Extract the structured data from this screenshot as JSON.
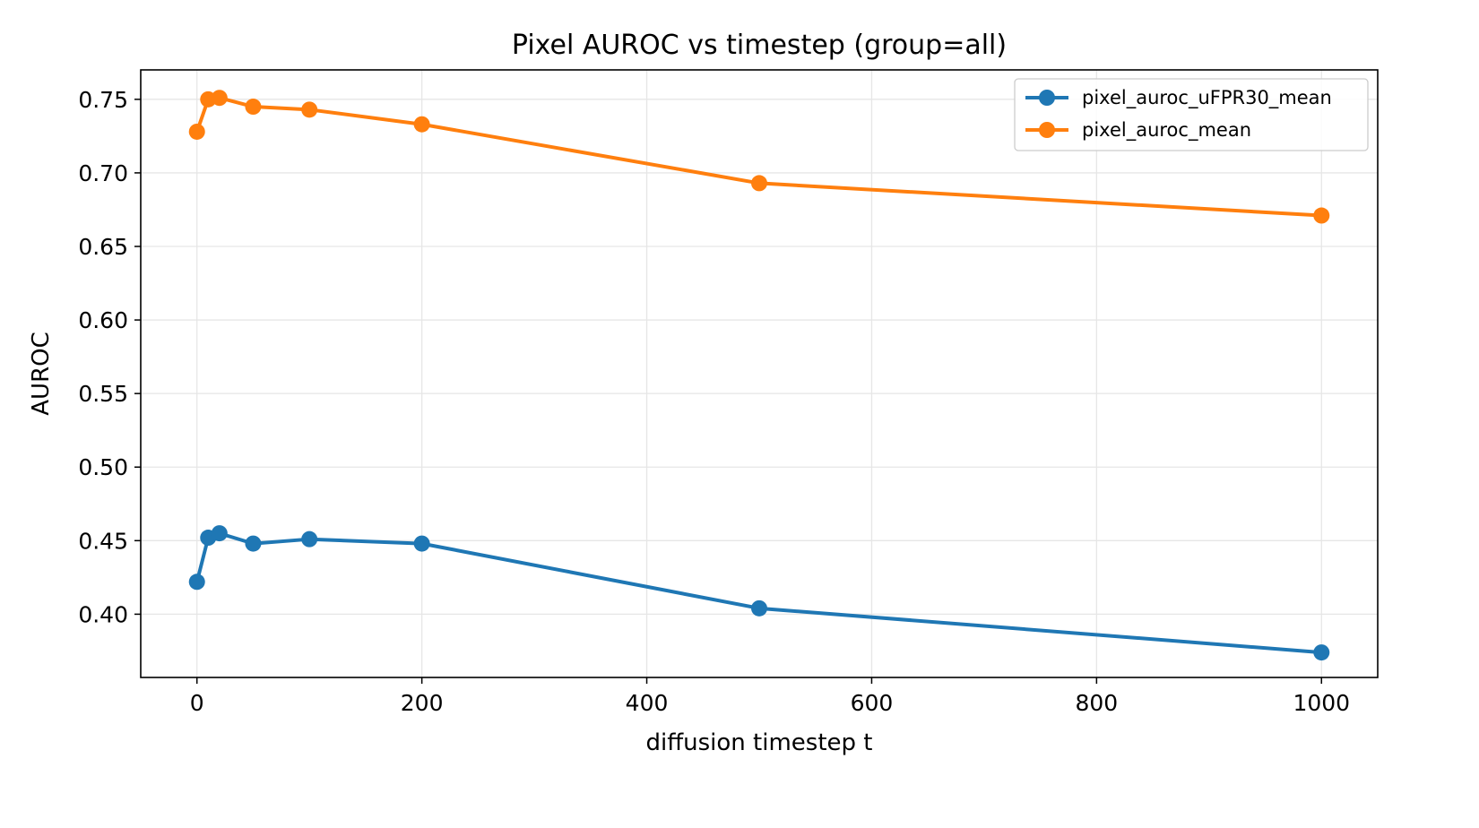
{
  "chart_data": {
    "type": "line",
    "title": "Pixel AUROC vs timestep  (group=all)",
    "xlabel": "diffusion timestep t",
    "ylabel": "AUROC",
    "xlim": [
      -50,
      1050
    ],
    "ylim": [
      0.357,
      0.77
    ],
    "xticks": [
      0,
      200,
      400,
      600,
      800,
      1000
    ],
    "xtick_labels": [
      "0",
      "200",
      "400",
      "600",
      "800",
      "1000"
    ],
    "yticks": [
      0.4,
      0.45,
      0.5,
      0.55,
      0.6,
      0.65,
      0.7,
      0.75
    ],
    "ytick_labels": [
      "0.40",
      "0.45",
      "0.50",
      "0.55",
      "0.60",
      "0.65",
      "0.70",
      "0.75"
    ],
    "grid": true,
    "legend_position": "top-right",
    "x": [
      0,
      10,
      20,
      50,
      100,
      200,
      500,
      1000
    ],
    "series": [
      {
        "name": "pixel_auroc_uFPR30_mean",
        "color": "#1f77b4",
        "values": [
          0.422,
          0.452,
          0.455,
          0.448,
          0.451,
          0.448,
          0.404,
          0.374
        ]
      },
      {
        "name": "pixel_auroc_mean",
        "color": "#ff7f0e",
        "values": [
          0.728,
          0.75,
          0.751,
          0.745,
          0.743,
          0.733,
          0.693,
          0.671
        ]
      }
    ]
  }
}
